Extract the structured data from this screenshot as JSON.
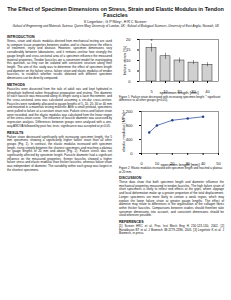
{
  "header": {
    "title": "The Effect of Specimen Dimensions on Stress, Strain and Elastic Modulus in Tendon Fascicles",
    "authors": "K Legerlotz¹, G P Riley², H R C Screen¹",
    "affiliations": "¹School of Engineering and Materials Science, Queen Mary University of London, UK; ²School of Biological Sciences, University of East Anglia, Norwich, UK"
  },
  "left": [
    {
      "heading": "INTRODUCTION",
      "text": "Stress, strain and elastic modulus derived from mechanical testing are used to compare tissue properties between studies and to characterise the effects of treatment, injury and disease. However, specimen dimensions vary considerably between laboratories, and it remains unclear how strongly the gauge length and cross-sectional area of a specimen influence the measured material properties. Tendon fascicles are a convenient model for investigating this question, as they can be isolated with consistent structure along their length. The aim of this study was to determine the effect of specimen length and diameter on the failure stress, failure strain and elastic modulus of tendon fascicles, to establish whether results obtained with different specimen dimensions can be directly compared."
    },
    {
      "heading": "METHODS",
      "text": "Fascicles were dissected from the tails of adult rats and kept hydrated in phosphate buffered saline throughout preparation and testing. The diameter of each fascicle was measured along its length using a laser micrometer, and the cross-sectional area was calculated assuming a circular cross-section. Fascicles were randomly allocated to gauge lengths of 5, 10, 20, 30 or 40 mm and mounted in a materials testing machine. After a small preload, specimens were pulled to failure at a constant strain rate. Failure stress and failure strain were recorded, and the elastic modulus was calculated from the linear region of the stress-strain curve. The influence of fascicle diameter was assessed by regression analysis. Differences between groups were analysed with a one-way ANOVA followed by post hoc tests; significance was accepted at p<0.05."
    },
    {
      "heading": "RESULTS",
      "text": "Failure strain decreased significantly with increasing specimen length, the 5 mm specimens showing a significantly higher failure strain than all other groups (Fig. 1). In contrast, the elastic modulus increased with specimen length, rising steeply between the shortest specimens and reaching a plateau for gauge lengths of 20 mm and above (Fig. 2). Failure stress was not significantly affected by specimen length. Fascicle diameter had a significant influence on the measured properties: thinner fascicles showed a higher failure stress and elastic modulus than thicker fascicles, whereas failure strain was independent of diameter. The variability within each group was largest in the shortest specimens."
    }
  ],
  "right": [
    {
      "heading": "DISCUSSION",
      "text": "These data show that both specimen length and diameter influence the mechanical properties measured in tendon fascicles. The high failure strain of short specimens is likely to reflect end effects at the grips, where slippage and local deformation make up a greater proportion of the total displacement. Longer specimens are more likely to contain a weak region, which may explain the lower failure strain at greater gauge lengths. The effect of diameter may relate to differences in the organisation of the collagen fibres within thicker fascicles. Comparisons between studies should therefore take specimen dimensions into account, and consistent dimensions should be used wherever possible."
    },
    {
      "heading": "REFERENCES",
      "text": "[1] Screen HRC et al. Proc Inst Mech Eng H 216:123-130, 2002. [2] Haraldsson BT et al. J Biomech 38:2279-2286, 2005. [3] Legerlotz K et al. J Biomech, in press."
    }
  ],
  "chart_data": [
    {
      "type": "bar",
      "caption": "Figure 1: Failure strain decreased with increasing specimen length. * significant difference to all other groups (p<0.05).",
      "x_label": "specimen length [mm]",
      "y_label": "failure strain [%]",
      "categories": [
        "5",
        "10",
        "20",
        "30",
        "40"
      ],
      "values": [
        16,
        12,
        10,
        9,
        8
      ],
      "errors": [
        2,
        1.5,
        1.2,
        1,
        1
      ],
      "annotations": [
        {
          "category": "5",
          "text": "*"
        }
      ],
      "color": "#d0d0d0",
      "ylim": [
        0,
        20
      ],
      "yticks": [
        0,
        5,
        10,
        15,
        20
      ]
    },
    {
      "type": "line",
      "caption": "Figure 2: Elastic modulus increased with specimen length and reached a plateau at 20 mm.",
      "x_label": "specimen length [mm]",
      "y_label": "elastic modulus [MPa]",
      "x": [
        5,
        10,
        20,
        30,
        40
      ],
      "values": [
        600,
        800,
        950,
        1000,
        1050
      ],
      "color": "#1f3f8f",
      "marker": "circle",
      "xlim": [
        0,
        50
      ],
      "xticks": [
        0,
        10,
        20,
        30,
        40,
        50
      ],
      "ylim": [
        0,
        1200
      ],
      "yticks": [
        0,
        400,
        800,
        1200
      ]
    }
  ]
}
